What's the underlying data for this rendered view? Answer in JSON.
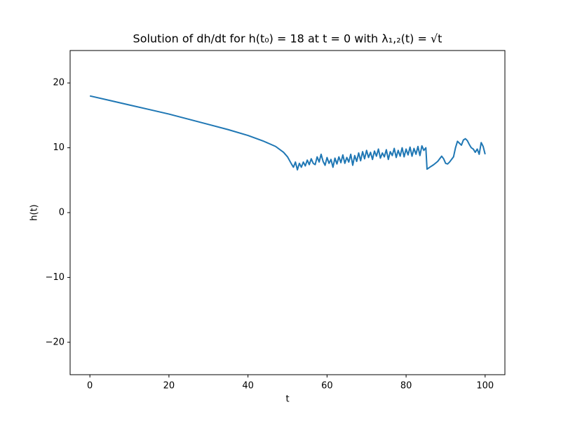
{
  "chart_data": {
    "type": "line",
    "title": "Solution of dh/dt for h(t₀) = 18 at t = 0 with λ₁,₂(t) = √t",
    "xlabel": "t",
    "ylabel": "h(t)",
    "xlim": [
      -5,
      105
    ],
    "ylim": [
      -25,
      25
    ],
    "xticks": [
      0,
      20,
      40,
      60,
      80,
      100
    ],
    "yticks": [
      {
        "value": -20,
        "label": "−20"
      },
      {
        "value": -10,
        "label": "−10"
      },
      0,
      10,
      20
    ],
    "grid": false,
    "x": [
      0,
      5,
      10,
      15,
      20,
      25,
      30,
      35,
      40,
      44,
      47,
      49,
      50,
      51,
      51.5,
      52,
      52.5,
      53,
      53.5,
      54,
      54.5,
      55,
      55.5,
      56,
      56.5,
      57,
      57.5,
      58,
      58.5,
      59,
      59.5,
      60,
      60.5,
      61,
      61.5,
      62,
      62.5,
      63,
      63.5,
      64,
      64.5,
      65,
      65.5,
      66,
      66.5,
      67,
      67.5,
      68,
      68.5,
      69,
      69.5,
      70,
      70.5,
      71,
      71.5,
      72,
      72.5,
      73,
      73.5,
      74,
      74.5,
      75,
      75.5,
      76,
      76.5,
      77,
      77.5,
      78,
      78.5,
      79,
      79.5,
      80,
      80.5,
      81,
      81.5,
      82,
      82.5,
      83,
      83.5,
      84,
      84.5,
      85,
      85.3,
      86,
      87,
      88,
      89,
      89.5,
      90,
      90.5,
      91,
      92,
      92.5,
      93,
      93.5,
      94,
      94.5,
      95,
      95.5,
      96,
      96.5,
      97,
      97.5,
      98,
      98.5,
      99,
      99.5,
      100
    ],
    "series": [
      {
        "name": "h(t)",
        "color": "#1f77b4",
        "values": [
          18.0,
          17.3,
          16.6,
          15.9,
          15.2,
          14.4,
          13.6,
          12.8,
          11.9,
          11.0,
          10.2,
          9.3,
          8.6,
          7.5,
          7.0,
          7.8,
          6.6,
          7.6,
          7.0,
          7.8,
          7.2,
          8.1,
          7.4,
          8.3,
          7.6,
          7.4,
          8.6,
          7.8,
          9.0,
          7.9,
          7.3,
          8.5,
          7.6,
          8.2,
          7.0,
          8.4,
          7.5,
          8.6,
          7.7,
          8.9,
          7.6,
          8.5,
          7.8,
          9.0,
          7.3,
          8.8,
          7.9,
          9.2,
          8.0,
          9.4,
          8.3,
          9.6,
          8.5,
          9.3,
          8.2,
          9.5,
          8.7,
          9.8,
          8.4,
          9.2,
          8.6,
          9.7,
          8.2,
          9.4,
          8.8,
          9.9,
          8.5,
          9.6,
          8.7,
          10.0,
          8.6,
          9.8,
          8.9,
          10.1,
          8.7,
          9.9,
          9.0,
          10.2,
          8.8,
          10.3,
          9.6,
          10.0,
          6.7,
          7.0,
          7.4,
          7.9,
          8.7,
          8.3,
          7.6,
          7.5,
          7.8,
          8.6,
          10.0,
          11.0,
          10.7,
          10.4,
          11.2,
          11.4,
          11.1,
          10.5,
          10.0,
          9.8,
          9.3,
          9.8,
          9.0,
          10.8,
          10.2,
          9.0
        ]
      }
    ]
  }
}
